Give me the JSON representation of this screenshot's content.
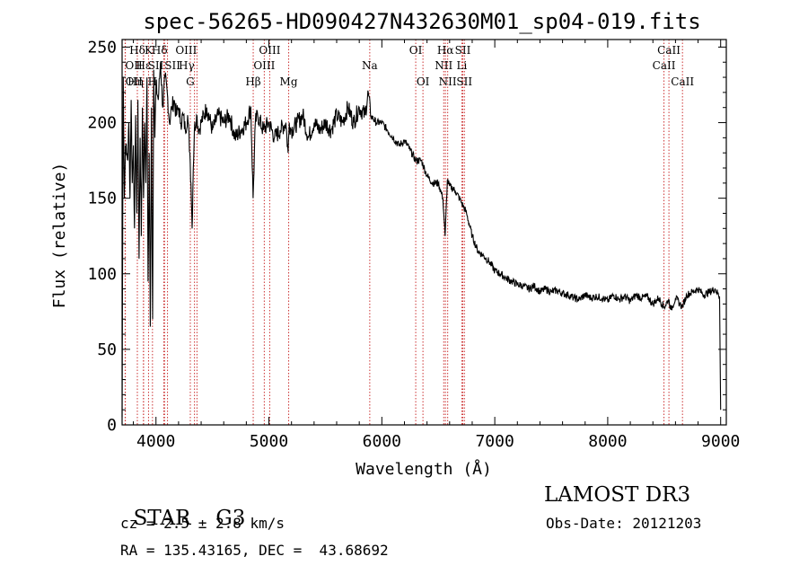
{
  "chart_data": {
    "type": "line",
    "title": "spec-56265-HD090427N432630M01_sp04-019.fits",
    "xlabel": "Wavelength (Å)",
    "ylabel": "Flux (relative)",
    "xlim": [
      3700,
      9050
    ],
    "ylim": [
      0,
      255
    ],
    "xticks": [
      4000,
      5000,
      6000,
      7000,
      8000,
      9000
    ],
    "yticks": [
      0,
      50,
      100,
      150,
      200,
      250
    ],
    "grid": false,
    "series": [
      {
        "x": [
          3700,
          3710,
          3720,
          3730,
          3740,
          3750,
          3760,
          3770,
          3780,
          3790,
          3800,
          3810,
          3820,
          3830,
          3840,
          3850,
          3860,
          3870,
          3880,
          3890,
          3900,
          3910,
          3920,
          3930,
          3940,
          3950,
          3960,
          3970,
          3980,
          3990,
          4000,
          4020,
          4040,
          4060,
          4080,
          4100,
          4120,
          4140,
          4160,
          4180,
          4200,
          4220,
          4240,
          4260,
          4280,
          4300,
          4310,
          4320,
          4330,
          4340,
          4360,
          4380,
          4400,
          4450,
          4500,
          4550,
          4600,
          4650,
          4700,
          4750,
          4800,
          4840,
          4860,
          4880,
          4900,
          4950,
          5000,
          5050,
          5100,
          5150,
          5170,
          5180,
          5200,
          5250,
          5300,
          5350,
          5400,
          5450,
          5500,
          5550,
          5600,
          5650,
          5700,
          5750,
          5800,
          5850,
          5880,
          5900,
          5950,
          6000,
          6050,
          6100,
          6150,
          6200,
          6250,
          6300,
          6350,
          6400,
          6450,
          6500,
          6540,
          6560,
          6580,
          6600,
          6650,
          6700,
          6750,
          6800,
          6850,
          6900,
          6950,
          7000,
          7050,
          7100,
          7150,
          7200,
          7250,
          7300,
          7350,
          7400,
          7450,
          7500,
          7550,
          7600,
          7650,
          7700,
          7750,
          7800,
          7850,
          7900,
          7950,
          8000,
          8050,
          8100,
          8150,
          8200,
          8250,
          8300,
          8350,
          8400,
          8450,
          8500,
          8540,
          8560,
          8600,
          8640,
          8660,
          8700,
          8750,
          8800,
          8850,
          8900,
          8950,
          8990,
          9000
        ],
        "y": [
          5,
          230,
          150,
          185,
          180,
          175,
          200,
          150,
          215,
          160,
          185,
          130,
          205,
          140,
          215,
          110,
          190,
          125,
          210,
          150,
          200,
          160,
          230,
          95,
          180,
          65,
          210,
          70,
          235,
          190,
          225,
          215,
          240,
          210,
          230,
          220,
          200,
          210,
          215,
          205,
          210,
          200,
          205,
          195,
          205,
          180,
          160,
          130,
          170,
          195,
          205,
          195,
          200,
          210,
          195,
          205,
          200,
          205,
          190,
          195,
          200,
          210,
          150,
          200,
          205,
          195,
          200,
          190,
          195,
          200,
          180,
          200,
          195,
          200,
          205,
          190,
          200,
          195,
          200,
          195,
          205,
          200,
          210,
          200,
          210,
          205,
          220,
          205,
          200,
          200,
          195,
          190,
          185,
          188,
          182,
          175,
          175,
          165,
          160,
          160,
          150,
          125,
          162,
          158,
          155,
          148,
          140,
          125,
          115,
          112,
          108,
          102,
          100,
          97,
          95,
          93,
          92,
          90,
          92,
          88,
          90,
          88,
          89,
          87,
          86,
          84,
          83,
          86,
          84,
          85,
          84,
          82,
          86,
          83,
          85,
          82,
          86,
          84,
          85,
          80,
          84,
          78,
          83,
          76,
          84,
          80,
          78,
          86,
          88,
          90,
          86,
          88,
          90,
          85,
          10
        ]
      }
    ],
    "line_markers": [
      {
        "label": "Hδ",
        "x": 3835,
        "row": 0,
        "align": "middle"
      },
      {
        "label": "OII",
        "x": 3727,
        "row": 1,
        "align": "start"
      },
      {
        "label": "OII",
        "x": 3729,
        "row": 2,
        "align": "start"
      },
      {
        "label": "K",
        "x": 3934,
        "row": 0,
        "align": "middle"
      },
      {
        "label": "Hε",
        "x": 3890,
        "row": 1,
        "align": "middle"
      },
      {
        "label": "Hη",
        "x": 3889,
        "row": 2,
        "align": "end"
      },
      {
        "label": "Hδ",
        "x": 4102,
        "row": 0,
        "align": "end"
      },
      {
        "label": "SII",
        "x": 4069,
        "row": 1,
        "align": "end"
      },
      {
        "label": "H",
        "x": 3969,
        "row": 2,
        "align": "middle"
      },
      {
        "label": "SII",
        "x": 4076,
        "row": 1,
        "align": "start"
      },
      {
        "label": "OIII",
        "x": 4363,
        "row": 0,
        "align": "end"
      },
      {
        "label": "Hγ",
        "x": 4341,
        "row": 1,
        "align": "end"
      },
      {
        "label": "G",
        "x": 4304,
        "row": 2,
        "align": "middle"
      },
      {
        "label": "Hβ",
        "x": 4861,
        "row": 3,
        "align": "middle"
      },
      {
        "label": "OIII",
        "x": 4959,
        "row": 1,
        "align": "middle"
      },
      {
        "label": "OIII",
        "x": 5007,
        "row": 0,
        "align": "middle"
      },
      {
        "label": "Mg",
        "x": 5175,
        "row": 3,
        "align": "middle"
      },
      {
        "label": "Na",
        "x": 5893,
        "row": 1,
        "align": "middle"
      },
      {
        "label": "OI",
        "x": 6300,
        "row": 0,
        "align": "middle"
      },
      {
        "label": "OI",
        "x": 6364,
        "row": 2,
        "align": "middle"
      },
      {
        "label": "NII",
        "x": 6548,
        "row": 1,
        "align": "middle"
      },
      {
        "label": "Hα",
        "x": 6563,
        "row": 0,
        "align": "middle"
      },
      {
        "label": "NII",
        "x": 6583,
        "row": 2,
        "align": "middle"
      },
      {
        "label": "SII",
        "x": 6717,
        "row": 0,
        "align": "middle"
      },
      {
        "label": "Li",
        "x": 6708,
        "row": 1,
        "align": "middle"
      },
      {
        "label": "SII",
        "x": 6731,
        "row": 2,
        "align": "middle"
      },
      {
        "label": "CaII",
        "x": 8498,
        "row": 1,
        "align": "middle"
      },
      {
        "label": "CaII",
        "x": 8542,
        "row": 0,
        "align": "middle"
      },
      {
        "label": "CaII",
        "x": 8662,
        "row": 2,
        "align": "middle"
      }
    ],
    "marker_color": "#cc3333"
  },
  "footer": {
    "object_type": "STAR",
    "subclass": "G3",
    "survey": "LAMOST DR3",
    "redshift": "cz = 2.5 ± 2.8 km/s",
    "obs_date": "Obs-Date: 20121203",
    "coordinates": "RA = 135.43165, DEC =  43.68692"
  }
}
